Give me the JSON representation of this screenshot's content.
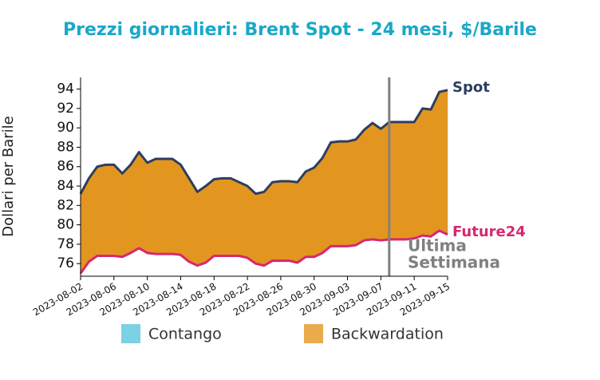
{
  "chart_data": {
    "type": "area_between",
    "title": "Prezzi giornalieri: Brent Spot - 24 mesi, $/Barile",
    "y_label": "Dollari per Barile",
    "x": [
      "2023-08-02",
      "2023-08-03",
      "2023-08-04",
      "2023-08-05",
      "2023-08-06",
      "2023-08-07",
      "2023-08-08",
      "2023-08-09",
      "2023-08-10",
      "2023-08-11",
      "2023-08-12",
      "2023-08-13",
      "2023-08-14",
      "2023-08-15",
      "2023-08-16",
      "2023-08-17",
      "2023-08-18",
      "2023-08-19",
      "2023-08-20",
      "2023-08-21",
      "2023-08-22",
      "2023-08-23",
      "2023-08-24",
      "2023-08-25",
      "2023-08-26",
      "2023-08-27",
      "2023-08-28",
      "2023-08-29",
      "2023-08-30",
      "2023-08-31",
      "2023-09-01",
      "2023-09-02",
      "2023-09-03",
      "2023-09-04",
      "2023-09-05",
      "2023-09-06",
      "2023-09-07",
      "2023-09-08",
      "2023-09-09",
      "2023-09-10",
      "2023-09-11",
      "2023-09-12",
      "2023-09-13",
      "2023-09-14",
      "2023-09-15"
    ],
    "series": [
      {
        "name": "Spot",
        "color": "#2d3e5f",
        "values": [
          83.2,
          84.8,
          86.0,
          86.2,
          86.2,
          85.3,
          86.2,
          87.5,
          86.4,
          86.8,
          86.8,
          86.8,
          86.2,
          84.8,
          83.4,
          84.0,
          84.7,
          84.8,
          84.8,
          84.4,
          84.0,
          83.2,
          83.4,
          84.4,
          84.5,
          84.5,
          84.4,
          85.5,
          85.9,
          86.9,
          88.5,
          88.6,
          88.6,
          88.8,
          89.8,
          90.5,
          89.9,
          90.6,
          90.6,
          90.6,
          90.6,
          92.0,
          91.9,
          93.7,
          93.9
        ]
      },
      {
        "name": "Future24",
        "color": "#d6286f",
        "values": [
          75.0,
          76.2,
          76.8,
          76.8,
          76.8,
          76.7,
          77.1,
          77.6,
          77.1,
          77.0,
          77.0,
          77.0,
          76.9,
          76.2,
          75.8,
          76.1,
          76.8,
          76.8,
          76.8,
          76.8,
          76.6,
          76.0,
          75.8,
          76.3,
          76.3,
          76.3,
          76.1,
          76.7,
          76.7,
          77.1,
          77.8,
          77.8,
          77.8,
          77.9,
          78.4,
          78.5,
          78.4,
          78.5,
          78.5,
          78.5,
          78.6,
          78.9,
          78.8,
          79.4,
          79.0
        ]
      }
    ],
    "fills": [
      {
        "name": "Contango",
        "color": "#5bc5db"
      },
      {
        "name": "Backwardation",
        "color": "#e3961f"
      }
    ],
    "annotation": {
      "text": [
        "Ultima",
        "Settimana"
      ],
      "x": "2023-09-08",
      "color": "#808080"
    },
    "xlim": [
      "2023-08-02",
      "2023-09-15"
    ],
    "xticks": [
      "2023-08-02",
      "2023-08-06",
      "2023-08-10",
      "2023-08-14",
      "2023-08-18",
      "2023-08-22",
      "2023-08-26",
      "2023-08-30",
      "2023-09-03",
      "2023-09-07",
      "2023-09-11",
      "2023-09-15"
    ],
    "ylim": [
      74.7,
      95.2
    ],
    "yticks": [
      76,
      78,
      80,
      82,
      84,
      86,
      88,
      90,
      92,
      94
    ]
  }
}
